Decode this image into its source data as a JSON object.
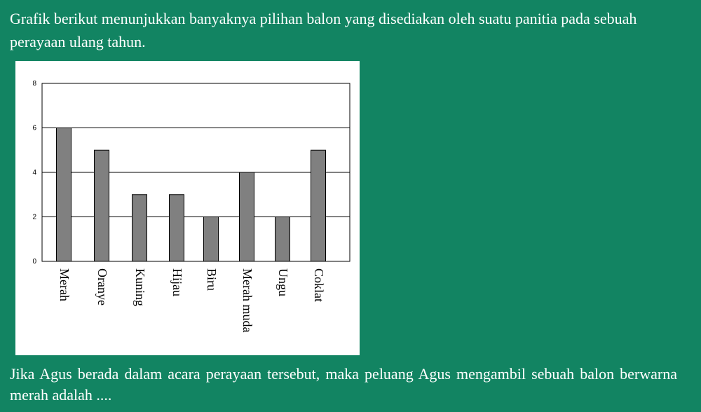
{
  "problem": {
    "intro": "Grafik berikut menunjukkan banyaknya pilihan balon yang disediakan oleh suatu panitia pada sebuah perayaan ulang tahun.",
    "question": "Jika Agus berada dalam acara perayaan tersebut, maka peluang Agus mengambil sebuah balon berwarna merah adalah ...."
  },
  "chart_data": {
    "type": "bar",
    "categories": [
      "Merah",
      "Oranye",
      "Kuning",
      "Hijau",
      "Biru",
      "Merah muda",
      "Ungu",
      "Coklat"
    ],
    "values": [
      6,
      5,
      3,
      3,
      2,
      4,
      2,
      5
    ],
    "yticks": [
      0,
      2,
      4,
      6,
      8
    ],
    "ylim": [
      0,
      8
    ],
    "title": "",
    "xlabel": "",
    "ylabel": "",
    "grid": true,
    "bar_color": "#808080"
  }
}
